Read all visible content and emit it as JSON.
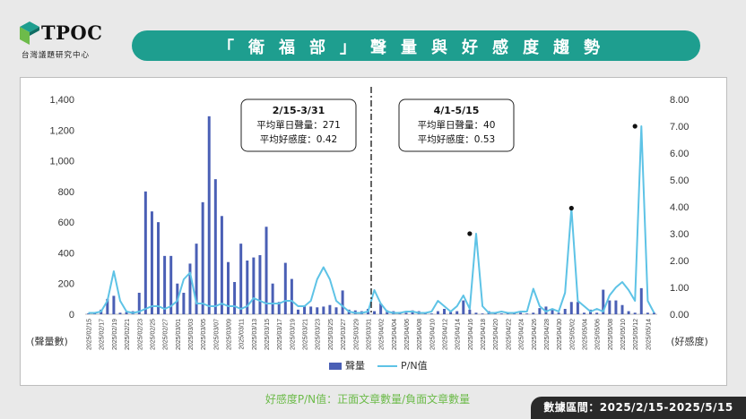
{
  "logo": {
    "word": "TPOC",
    "sub": "台灣議題研究中心"
  },
  "banner": {
    "title": "「衛福部」聲量與好感度趨勢"
  },
  "footnote": "好感度P/N值：正面文章數量/負面文章數量",
  "date_range": "數據區間：2025/2/15-2025/5/15",
  "colors": {
    "bar": "#4a5fb5",
    "line": "#5ec3e6",
    "accent": "#1e9e8f",
    "note": "#6dbb4a"
  },
  "chart_data": {
    "type": "bar+line",
    "ylabel_left": "(聲量數)",
    "ylabel_right": "(好感度)",
    "ylim_left": [
      0,
      1400
    ],
    "ylim_right": [
      0,
      8
    ],
    "yticks_left": [
      "0",
      "200",
      "400",
      "600",
      "800",
      "1,000",
      "1,200",
      "1,400"
    ],
    "yticks_right": [
      "0.00",
      "1.00",
      "2.00",
      "3.00",
      "4.00",
      "5.00",
      "6.00",
      "7.00",
      "8.00"
    ],
    "legend": [
      "聲量",
      "P/N值"
    ],
    "x": [
      "2025/02/15",
      "2025/02/16",
      "2025/02/17",
      "2025/02/18",
      "2025/02/19",
      "2025/02/20",
      "2025/02/21",
      "2025/02/22",
      "2025/02/23",
      "2025/02/24",
      "2025/02/25",
      "2025/02/26",
      "2025/02/27",
      "2025/02/28",
      "2025/03/01",
      "2025/03/02",
      "2025/03/03",
      "2025/03/04",
      "2025/03/05",
      "2025/03/06",
      "2025/03/07",
      "2025/03/08",
      "2025/03/09",
      "2025/03/10",
      "2025/03/11",
      "2025/03/12",
      "2025/03/13",
      "2025/03/14",
      "2025/03/15",
      "2025/03/16",
      "2025/03/17",
      "2025/03/18",
      "2025/03/19",
      "2025/03/20",
      "2025/03/21",
      "2025/03/22",
      "2025/03/23",
      "2025/03/24",
      "2025/03/25",
      "2025/03/26",
      "2025/03/27",
      "2025/03/28",
      "2025/03/29",
      "2025/03/30",
      "2025/03/31",
      "2025/04/01",
      "2025/04/02",
      "2025/04/03",
      "2025/04/04",
      "2025/04/05",
      "2025/04/06",
      "2025/04/07",
      "2025/04/08",
      "2025/04/09",
      "2025/04/10",
      "2025/04/11",
      "2025/04/12",
      "2025/04/13",
      "2025/04/14",
      "2025/04/15",
      "2025/04/16",
      "2025/04/17",
      "2025/04/18",
      "2025/04/19",
      "2025/04/20",
      "2025/04/21",
      "2025/04/22",
      "2025/04/23",
      "2025/04/24",
      "2025/04/25",
      "2025/04/26",
      "2025/04/27",
      "2025/04/28",
      "2025/04/29",
      "2025/04/30",
      "2025/05/01",
      "2025/05/02",
      "2025/05/03",
      "2025/05/04",
      "2025/05/05",
      "2025/05/06",
      "2025/05/07",
      "2025/05/08",
      "2025/05/09",
      "2025/05/10",
      "2025/05/11",
      "2025/05/12",
      "2025/05/13",
      "2025/05/14",
      "2025/05/15"
    ],
    "x_tick_labels": [
      "2025/02/15",
      "2025/02/17",
      "2025/02/19",
      "2025/02/21",
      "2025/02/23",
      "2025/02/25",
      "2025/02/27",
      "2025/03/01",
      "2025/03/03",
      "2025/03/05",
      "2025/03/07",
      "2025/03/09",
      "2025/03/11",
      "2025/03/13",
      "2025/03/15",
      "2025/03/17",
      "2025/03/19",
      "2025/03/21",
      "2025/03/23",
      "2025/03/25",
      "2025/03/27",
      "2025/03/29",
      "2025/03/31",
      "2025/04/02",
      "2025/04/04",
      "2025/04/06",
      "2025/04/08",
      "2025/04/10",
      "2025/04/12",
      "2025/04/14",
      "2025/04/16",
      "2025/04/18",
      "2025/04/20",
      "2025/04/22",
      "2025/04/24",
      "2025/04/26",
      "2025/04/28",
      "2025/04/30",
      "2025/05/02",
      "2025/05/04",
      "2025/05/06",
      "2025/05/08",
      "2025/05/10",
      "2025/05/12",
      "2025/05/14"
    ],
    "series": [
      {
        "name": "聲量",
        "type": "bar",
        "axis": "left",
        "values": [
          5,
          10,
          30,
          100,
          120,
          10,
          15,
          20,
          140,
          800,
          670,
          600,
          380,
          380,
          200,
          140,
          330,
          460,
          730,
          1290,
          880,
          640,
          340,
          210,
          460,
          350,
          370,
          385,
          570,
          200,
          80,
          335,
          230,
          30,
          55,
          50,
          45,
          50,
          60,
          45,
          155,
          30,
          25,
          20,
          35,
          20,
          70,
          25,
          20,
          15,
          10,
          25,
          20,
          10,
          5,
          20,
          35,
          15,
          20,
          90,
          30,
          10,
          5,
          20,
          10,
          5,
          10,
          10,
          10,
          5,
          10,
          40,
          50,
          30,
          10,
          35,
          80,
          80,
          10,
          30,
          10,
          160,
          90,
          90,
          60,
          20,
          10,
          170,
          10,
          10
        ]
      },
      {
        "name": "P/N值",
        "type": "line",
        "axis": "right",
        "values": [
          0.05,
          0.05,
          0.1,
          0.5,
          1.6,
          0.5,
          0.1,
          0.05,
          0.1,
          0.2,
          0.3,
          0.3,
          0.2,
          0.3,
          0.5,
          1.3,
          1.55,
          0.4,
          0.4,
          0.3,
          0.3,
          0.4,
          0.3,
          0.3,
          0.2,
          0.3,
          0.6,
          0.5,
          0.4,
          0.4,
          0.4,
          0.5,
          0.5,
          0.3,
          0.3,
          0.5,
          1.3,
          1.75,
          1.3,
          0.5,
          0.3,
          0.1,
          0.05,
          0.05,
          0.1,
          0.9,
          0.4,
          0.1,
          0.05,
          0.05,
          0.1,
          0.1,
          0.05,
          0.05,
          0.1,
          0.5,
          0.3,
          0.1,
          0.3,
          0.7,
          0.2,
          3.0,
          0.3,
          0.05,
          0.05,
          0.1,
          0.05,
          0.05,
          0.1,
          0.1,
          0.95,
          0.3,
          0.1,
          0.2,
          0.1,
          0.8,
          3.95,
          0.5,
          0.3,
          0.1,
          0.2,
          0.1,
          0.7,
          1.0,
          1.2,
          0.9,
          0.5,
          7.0,
          0.5,
          0.05
        ]
      }
    ],
    "marker_points": [
      {
        "x": "2025/04/16",
        "y": 3.0
      },
      {
        "x": "2025/05/02",
        "y": 3.95
      },
      {
        "x": "2025/05/12",
        "y": 7.0
      }
    ],
    "divider_x": "2025/04/01",
    "annotations": [
      {
        "period": "2/15-3/31",
        "line1": "平均單日聲量：271",
        "line2": "平均好感度：0.42"
      },
      {
        "period": "4/1-5/15",
        "line1": "平均單日聲量：40",
        "line2": "平均好感度：0.53"
      }
    ]
  }
}
